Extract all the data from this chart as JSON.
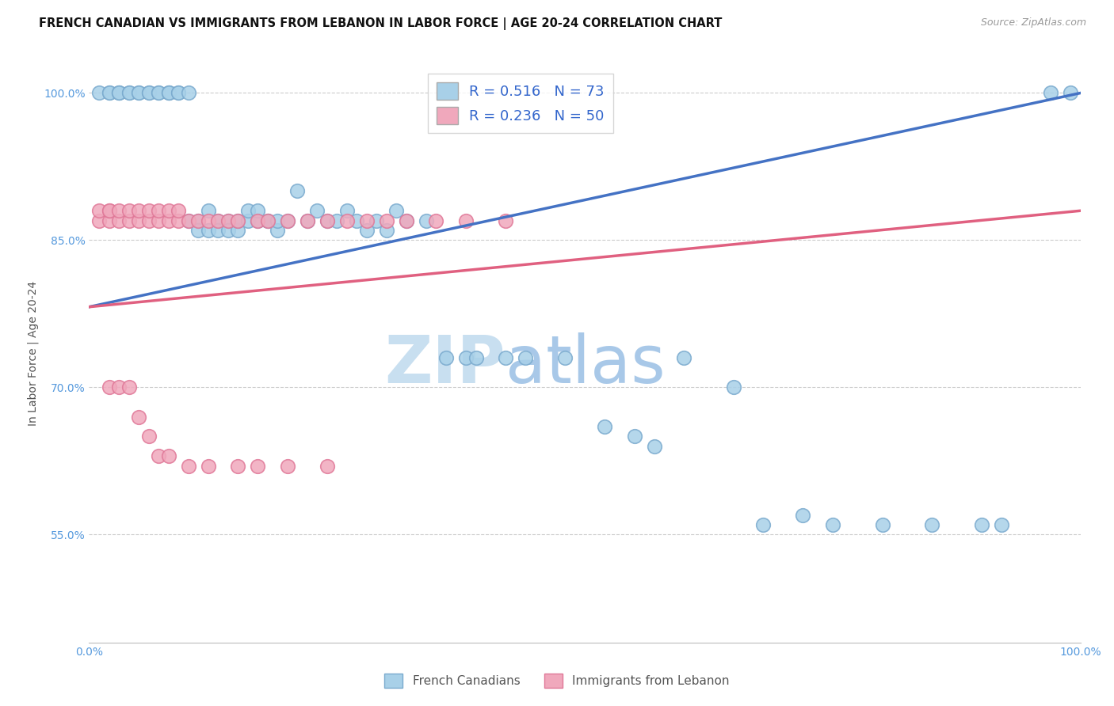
{
  "title": "FRENCH CANADIAN VS IMMIGRANTS FROM LEBANON IN LABOR FORCE | AGE 20-24 CORRELATION CHART",
  "source": "Source: ZipAtlas.com",
  "ylabel": "In Labor Force | Age 20-24",
  "xlabel": "",
  "watermark_zip": "ZIP",
  "watermark_atlas": "atlas",
  "xlim": [
    0,
    1
  ],
  "ylim": [
    0.44,
    1.03
  ],
  "yticks": [
    0.55,
    0.7,
    0.85,
    1.0
  ],
  "ytick_labels": [
    "55.0%",
    "70.0%",
    "85.0%",
    "100.0%"
  ],
  "blue_R": "0.516",
  "blue_N": "73",
  "pink_R": "0.236",
  "pink_N": "50",
  "blue_color": "#A8D0E8",
  "pink_color": "#F0A8BC",
  "blue_edge_color": "#7AAACE",
  "pink_edge_color": "#E07898",
  "blue_line_color": "#4472C4",
  "pink_line_color": "#E06080",
  "background_color": "#FFFFFF",
  "grid_color": "#CCCCCC",
  "title_fontsize": 10.5,
  "axis_label_fontsize": 10,
  "tick_fontsize": 10,
  "legend_fontsize": 13,
  "watermark_fontsize_zip": 60,
  "watermark_fontsize_atlas": 60,
  "watermark_color": "#D0E8F8",
  "blue_x": [
    0.01,
    0.02,
    0.02,
    0.03,
    0.03,
    0.03,
    0.04,
    0.04,
    0.05,
    0.05,
    0.06,
    0.06,
    0.07,
    0.07,
    0.08,
    0.08,
    0.08,
    0.09,
    0.09,
    0.1,
    0.1,
    0.11,
    0.11,
    0.12,
    0.12,
    0.13,
    0.13,
    0.14,
    0.14,
    0.15,
    0.15,
    0.16,
    0.16,
    0.17,
    0.17,
    0.18,
    0.18,
    0.19,
    0.19,
    0.2,
    0.21,
    0.22,
    0.23,
    0.24,
    0.25,
    0.26,
    0.27,
    0.28,
    0.29,
    0.3,
    0.31,
    0.32,
    0.34,
    0.36,
    0.38,
    0.39,
    0.42,
    0.44,
    0.48,
    0.52,
    0.55,
    0.57,
    0.6,
    0.65,
    0.68,
    0.72,
    0.75,
    0.8,
    0.85,
    0.9,
    0.92,
    0.97,
    0.99
  ],
  "blue_y": [
    1.0,
    1.0,
    1.0,
    1.0,
    1.0,
    1.0,
    1.0,
    1.0,
    1.0,
    1.0,
    1.0,
    1.0,
    1.0,
    1.0,
    1.0,
    1.0,
    1.0,
    1.0,
    1.0,
    1.0,
    0.87,
    0.87,
    0.86,
    0.86,
    0.88,
    0.87,
    0.86,
    0.87,
    0.86,
    0.86,
    0.87,
    0.87,
    0.88,
    0.87,
    0.88,
    0.87,
    0.87,
    0.86,
    0.87,
    0.87,
    0.9,
    0.87,
    0.88,
    0.87,
    0.87,
    0.88,
    0.87,
    0.86,
    0.87,
    0.86,
    0.88,
    0.87,
    0.87,
    0.73,
    0.73,
    0.73,
    0.73,
    0.73,
    0.73,
    0.66,
    0.65,
    0.64,
    0.73,
    0.7,
    0.56,
    0.57,
    0.56,
    0.56,
    0.56,
    0.56,
    0.56,
    1.0,
    1.0
  ],
  "pink_x": [
    0.01,
    0.01,
    0.02,
    0.02,
    0.02,
    0.03,
    0.03,
    0.04,
    0.04,
    0.05,
    0.05,
    0.06,
    0.06,
    0.07,
    0.07,
    0.08,
    0.08,
    0.09,
    0.09,
    0.1,
    0.11,
    0.12,
    0.13,
    0.14,
    0.15,
    0.17,
    0.18,
    0.2,
    0.22,
    0.24,
    0.26,
    0.28,
    0.3,
    0.32,
    0.35,
    0.38,
    0.42,
    0.02,
    0.03,
    0.04,
    0.05,
    0.06,
    0.07,
    0.08,
    0.1,
    0.12,
    0.15,
    0.17,
    0.2,
    0.24
  ],
  "pink_y": [
    0.87,
    0.88,
    0.87,
    0.88,
    0.88,
    0.87,
    0.88,
    0.87,
    0.88,
    0.87,
    0.88,
    0.87,
    0.88,
    0.87,
    0.88,
    0.87,
    0.88,
    0.87,
    0.88,
    0.87,
    0.87,
    0.87,
    0.87,
    0.87,
    0.87,
    0.87,
    0.87,
    0.87,
    0.87,
    0.87,
    0.87,
    0.87,
    0.87,
    0.87,
    0.87,
    0.87,
    0.87,
    0.7,
    0.7,
    0.7,
    0.67,
    0.65,
    0.63,
    0.63,
    0.62,
    0.62,
    0.62,
    0.62,
    0.62,
    0.62
  ],
  "blue_line_x0": 0.0,
  "blue_line_y0": 0.782,
  "blue_line_x1": 1.0,
  "blue_line_y1": 1.0,
  "pink_line_x0": 0.0,
  "pink_line_y0": 0.782,
  "pink_line_x1": 1.0,
  "pink_line_y1": 0.88
}
